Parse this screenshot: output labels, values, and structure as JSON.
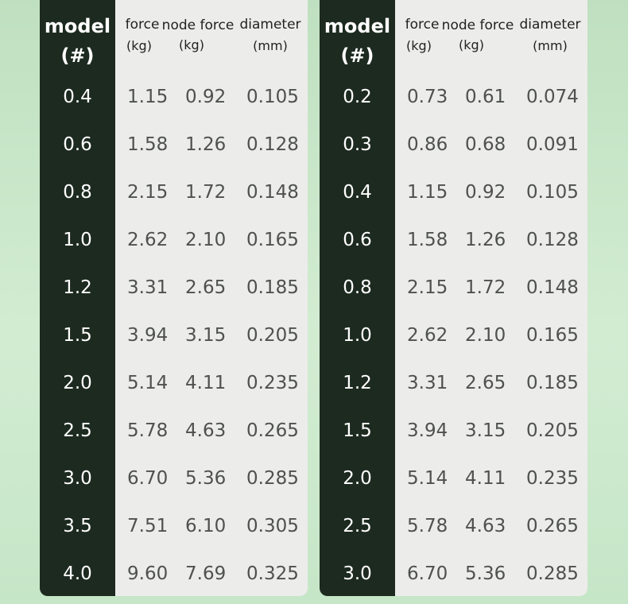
{
  "headers": {
    "model": "model",
    "model_unit": "(#)",
    "force": "force",
    "force_unit": "(kg)",
    "node_force": "node force",
    "node_force_unit": "(kg)",
    "diameter": "diameter",
    "diameter_unit": "(mm)"
  },
  "tables": [
    {
      "rows": [
        {
          "model": "0.4",
          "force": "1.15",
          "node_force": "0.92",
          "diameter": "0.105"
        },
        {
          "model": "0.6",
          "force": "1.58",
          "node_force": "1.26",
          "diameter": "0.128"
        },
        {
          "model": "0.8",
          "force": "2.15",
          "node_force": "1.72",
          "diameter": "0.148"
        },
        {
          "model": "1.0",
          "force": "2.62",
          "node_force": "2.10",
          "diameter": "0.165"
        },
        {
          "model": "1.2",
          "force": "3.31",
          "node_force": "2.65",
          "diameter": "0.185"
        },
        {
          "model": "1.5",
          "force": "3.94",
          "node_force": "3.15",
          "diameter": "0.205"
        },
        {
          "model": "2.0",
          "force": "5.14",
          "node_force": "4.11",
          "diameter": "0.235"
        },
        {
          "model": "2.5",
          "force": "5.78",
          "node_force": "4.63",
          "diameter": "0.265"
        },
        {
          "model": "3.0",
          "force": "6.70",
          "node_force": "5.36",
          "diameter": "0.285"
        },
        {
          "model": "3.5",
          "force": "7.51",
          "node_force": "6.10",
          "diameter": "0.305"
        },
        {
          "model": "4.0",
          "force": "9.60",
          "node_force": "7.69",
          "diameter": "0.325"
        }
      ]
    },
    {
      "rows": [
        {
          "model": "0.2",
          "force": "0.73",
          "node_force": "0.61",
          "diameter": "0.074"
        },
        {
          "model": "0.3",
          "force": "0.86",
          "node_force": "0.68",
          "diameter": "0.091"
        },
        {
          "model": "0.4",
          "force": "1.15",
          "node_force": "0.92",
          "diameter": "0.105"
        },
        {
          "model": "0.6",
          "force": "1.58",
          "node_force": "1.26",
          "diameter": "0.128"
        },
        {
          "model": "0.8",
          "force": "2.15",
          "node_force": "1.72",
          "diameter": "0.148"
        },
        {
          "model": "1.0",
          "force": "2.62",
          "node_force": "2.10",
          "diameter": "0.165"
        },
        {
          "model": "1.2",
          "force": "3.31",
          "node_force": "2.65",
          "diameter": "0.185"
        },
        {
          "model": "1.5",
          "force": "3.94",
          "node_force": "3.15",
          "diameter": "0.205"
        },
        {
          "model": "2.0",
          "force": "5.14",
          "node_force": "4.11",
          "diameter": "0.235"
        },
        {
          "model": "2.5",
          "force": "5.78",
          "node_force": "4.63",
          "diameter": "0.265"
        },
        {
          "model": "3.0",
          "force": "6.70",
          "node_force": "5.36",
          "diameter": "0.285"
        }
      ]
    }
  ]
}
